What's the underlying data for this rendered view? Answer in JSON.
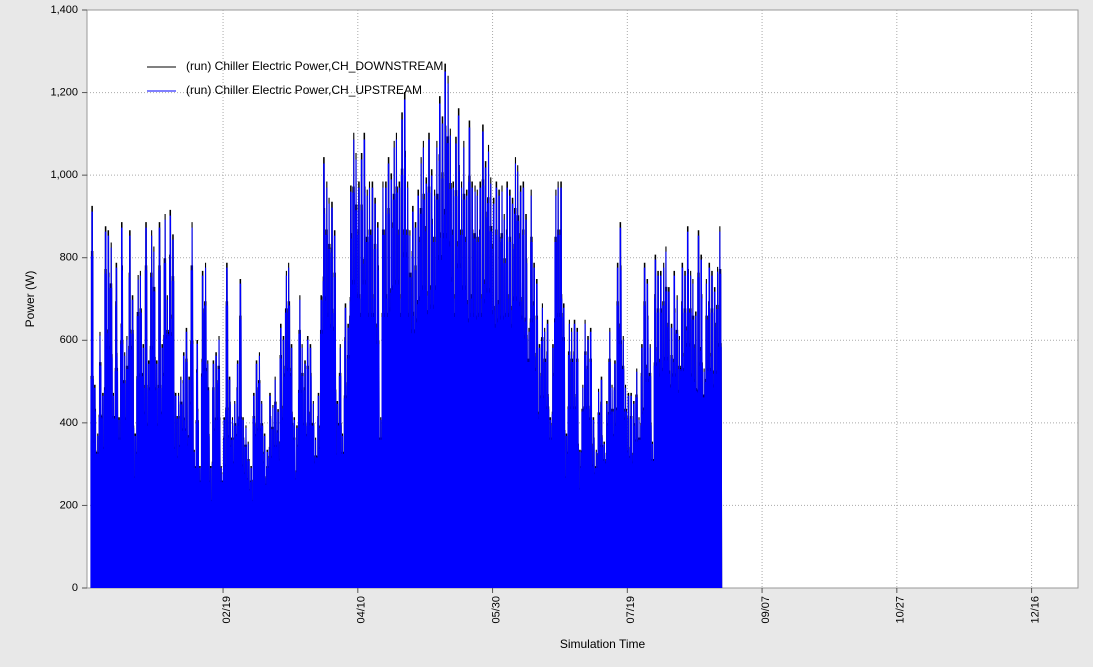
{
  "chart_data": {
    "type": "line",
    "title": "",
    "xlabel": "Simulation Time",
    "ylabel": "Power (W)",
    "ylim": [
      0,
      1400
    ],
    "yticks": [
      0,
      200,
      400,
      600,
      800,
      1000,
      1200,
      1400
    ],
    "ytick_labels": [
      "0",
      "200",
      "400",
      "600",
      "800",
      "1,000",
      "1,200",
      "1,400"
    ],
    "x_range_days": [
      1,
      365
    ],
    "xticks": [
      {
        "label": "02/19",
        "day": 50
      },
      {
        "label": "04/10",
        "day": 100
      },
      {
        "label": "05/30",
        "day": 150
      },
      {
        "label": "07/19",
        "day": 200
      },
      {
        "label": "09/07",
        "day": 250
      },
      {
        "label": "10/27",
        "day": 300
      },
      {
        "label": "12/16",
        "day": 350
      }
    ],
    "grid": true,
    "legend_position": "top-left",
    "series": [
      {
        "name": "(run) Chiller Electric Power,CH_DOWNSTREAM",
        "color": "#000000"
      },
      {
        "name": "(run) Chiller Electric Power,CH_UPSTREAM",
        "color": "#0000ff"
      }
    ],
    "daily_peaks_upstream": [
      940,
      500,
      380,
      630,
      480,
      890,
      880,
      850,
      480,
      800,
      420,
      900,
      580,
      620,
      880,
      720,
      380,
      770,
      780,
      600,
      900,
      560,
      880,
      840,
      560,
      900,
      600,
      920,
      720,
      930,
      870,
      480,
      480,
      520,
      580,
      640,
      520,
      900,
      340,
      610,
      300,
      780,
      800,
      560,
      300,
      560,
      580,
      620,
      300,
      420,
      800,
      520,
      420,
      460,
      560,
      760,
      420,
      400,
      360,
      300,
      480,
      560,
      580,
      460,
      380,
      340,
      480,
      450,
      520,
      440,
      650,
      620,
      780,
      800,
      600,
      420,
      400,
      720,
      600,
      560,
      620,
      600,
      460,
      370,
      480,
      720,
      1060,
      1000,
      960,
      950,
      880,
      460,
      600,
      380,
      700,
      650,
      990,
      1120,
      1070,
      1000,
      1070,
      1120,
      980,
      1000,
      1000,
      960,
      900,
      420,
      1000,
      1000,
      1060,
      1020,
      1100,
      1120,
      1000,
      1170,
      1220,
      1000,
      880,
      940,
      900,
      980,
      1060,
      1100,
      1010,
      1120,
      1030,
      980,
      1100,
      1210,
      1160,
      1290,
      1260,
      1130,
      1000,
      1110,
      1180,
      1000,
      1100,
      980,
      1150,
      1000,
      990,
      980,
      1000,
      1140,
      1050,
      1090,
      1010,
      960,
      1000,
      980,
      990,
      920,
      1000,
      980,
      960,
      1060,
      1040,
      990,
      1000,
      920,
      640,
      980,
      800,
      760,
      600,
      700,
      640,
      660,
      420,
      600,
      980,
      1000,
      1000,
      700,
      380,
      660,
      640,
      660,
      640,
      340,
      500,
      660,
      620,
      640,
      420,
      340,
      490,
      520,
      360,
      460,
      640,
      500,
      560,
      800,
      900,
      620,
      500,
      480,
      480,
      460,
      540,
      420,
      600,
      800,
      760,
      600,
      360,
      820,
      780,
      780,
      800,
      840,
      740,
      650,
      780,
      720,
      620,
      800,
      780,
      890,
      780,
      760,
      680,
      880,
      820,
      540,
      760,
      800,
      780,
      740,
      790,
      890
    ],
    "daily_peaks_downstream": [
      940,
      500,
      380,
      630,
      480,
      890,
      880,
      850,
      480,
      800,
      420,
      900,
      580,
      620,
      880,
      720,
      380,
      770,
      780,
      600,
      900,
      560,
      880,
      840,
      560,
      900,
      600,
      920,
      720,
      930,
      870,
      480,
      480,
      520,
      580,
      640,
      520,
      900,
      340,
      610,
      300,
      780,
      800,
      560,
      300,
      560,
      580,
      620,
      300,
      420,
      800,
      520,
      420,
      460,
      560,
      760,
      420,
      400,
      360,
      300,
      480,
      560,
      580,
      460,
      380,
      340,
      480,
      450,
      520,
      440,
      650,
      620,
      780,
      800,
      600,
      420,
      400,
      720,
      600,
      560,
      620,
      600,
      460,
      370,
      480,
      720,
      1060,
      1000,
      960,
      950,
      880,
      460,
      600,
      380,
      700,
      650,
      990,
      1120,
      1070,
      1000,
      1070,
      1120,
      980,
      1000,
      1000,
      960,
      900,
      420,
      1000,
      1000,
      1060,
      1020,
      1100,
      1120,
      1000,
      1170,
      1220,
      1000,
      880,
      940,
      900,
      980,
      1060,
      1100,
      1010,
      1120,
      1030,
      980,
      1100,
      1210,
      1160,
      1290,
      1260,
      1130,
      1000,
      1110,
      1180,
      1000,
      1100,
      980,
      1150,
      1000,
      990,
      980,
      1000,
      1140,
      1050,
      1090,
      1010,
      960,
      1000,
      980,
      990,
      920,
      1000,
      980,
      960,
      1060,
      1040,
      990,
      1000,
      920,
      640,
      980,
      800,
      760,
      600,
      700,
      640,
      660,
      420,
      600,
      980,
      1000,
      1000,
      700,
      380,
      660,
      640,
      660,
      640,
      340,
      500,
      660,
      620,
      640,
      420,
      340,
      490,
      520,
      360,
      460,
      640,
      500,
      560,
      800,
      900,
      620,
      500,
      480,
      480,
      460,
      540,
      420,
      600,
      800,
      760,
      600,
      360,
      820,
      780,
      780,
      800,
      840,
      740,
      650,
      780,
      720,
      620,
      800,
      780,
      890,
      780,
      760,
      680,
      880,
      820,
      540,
      760,
      800,
      780,
      740,
      790,
      890
    ]
  }
}
